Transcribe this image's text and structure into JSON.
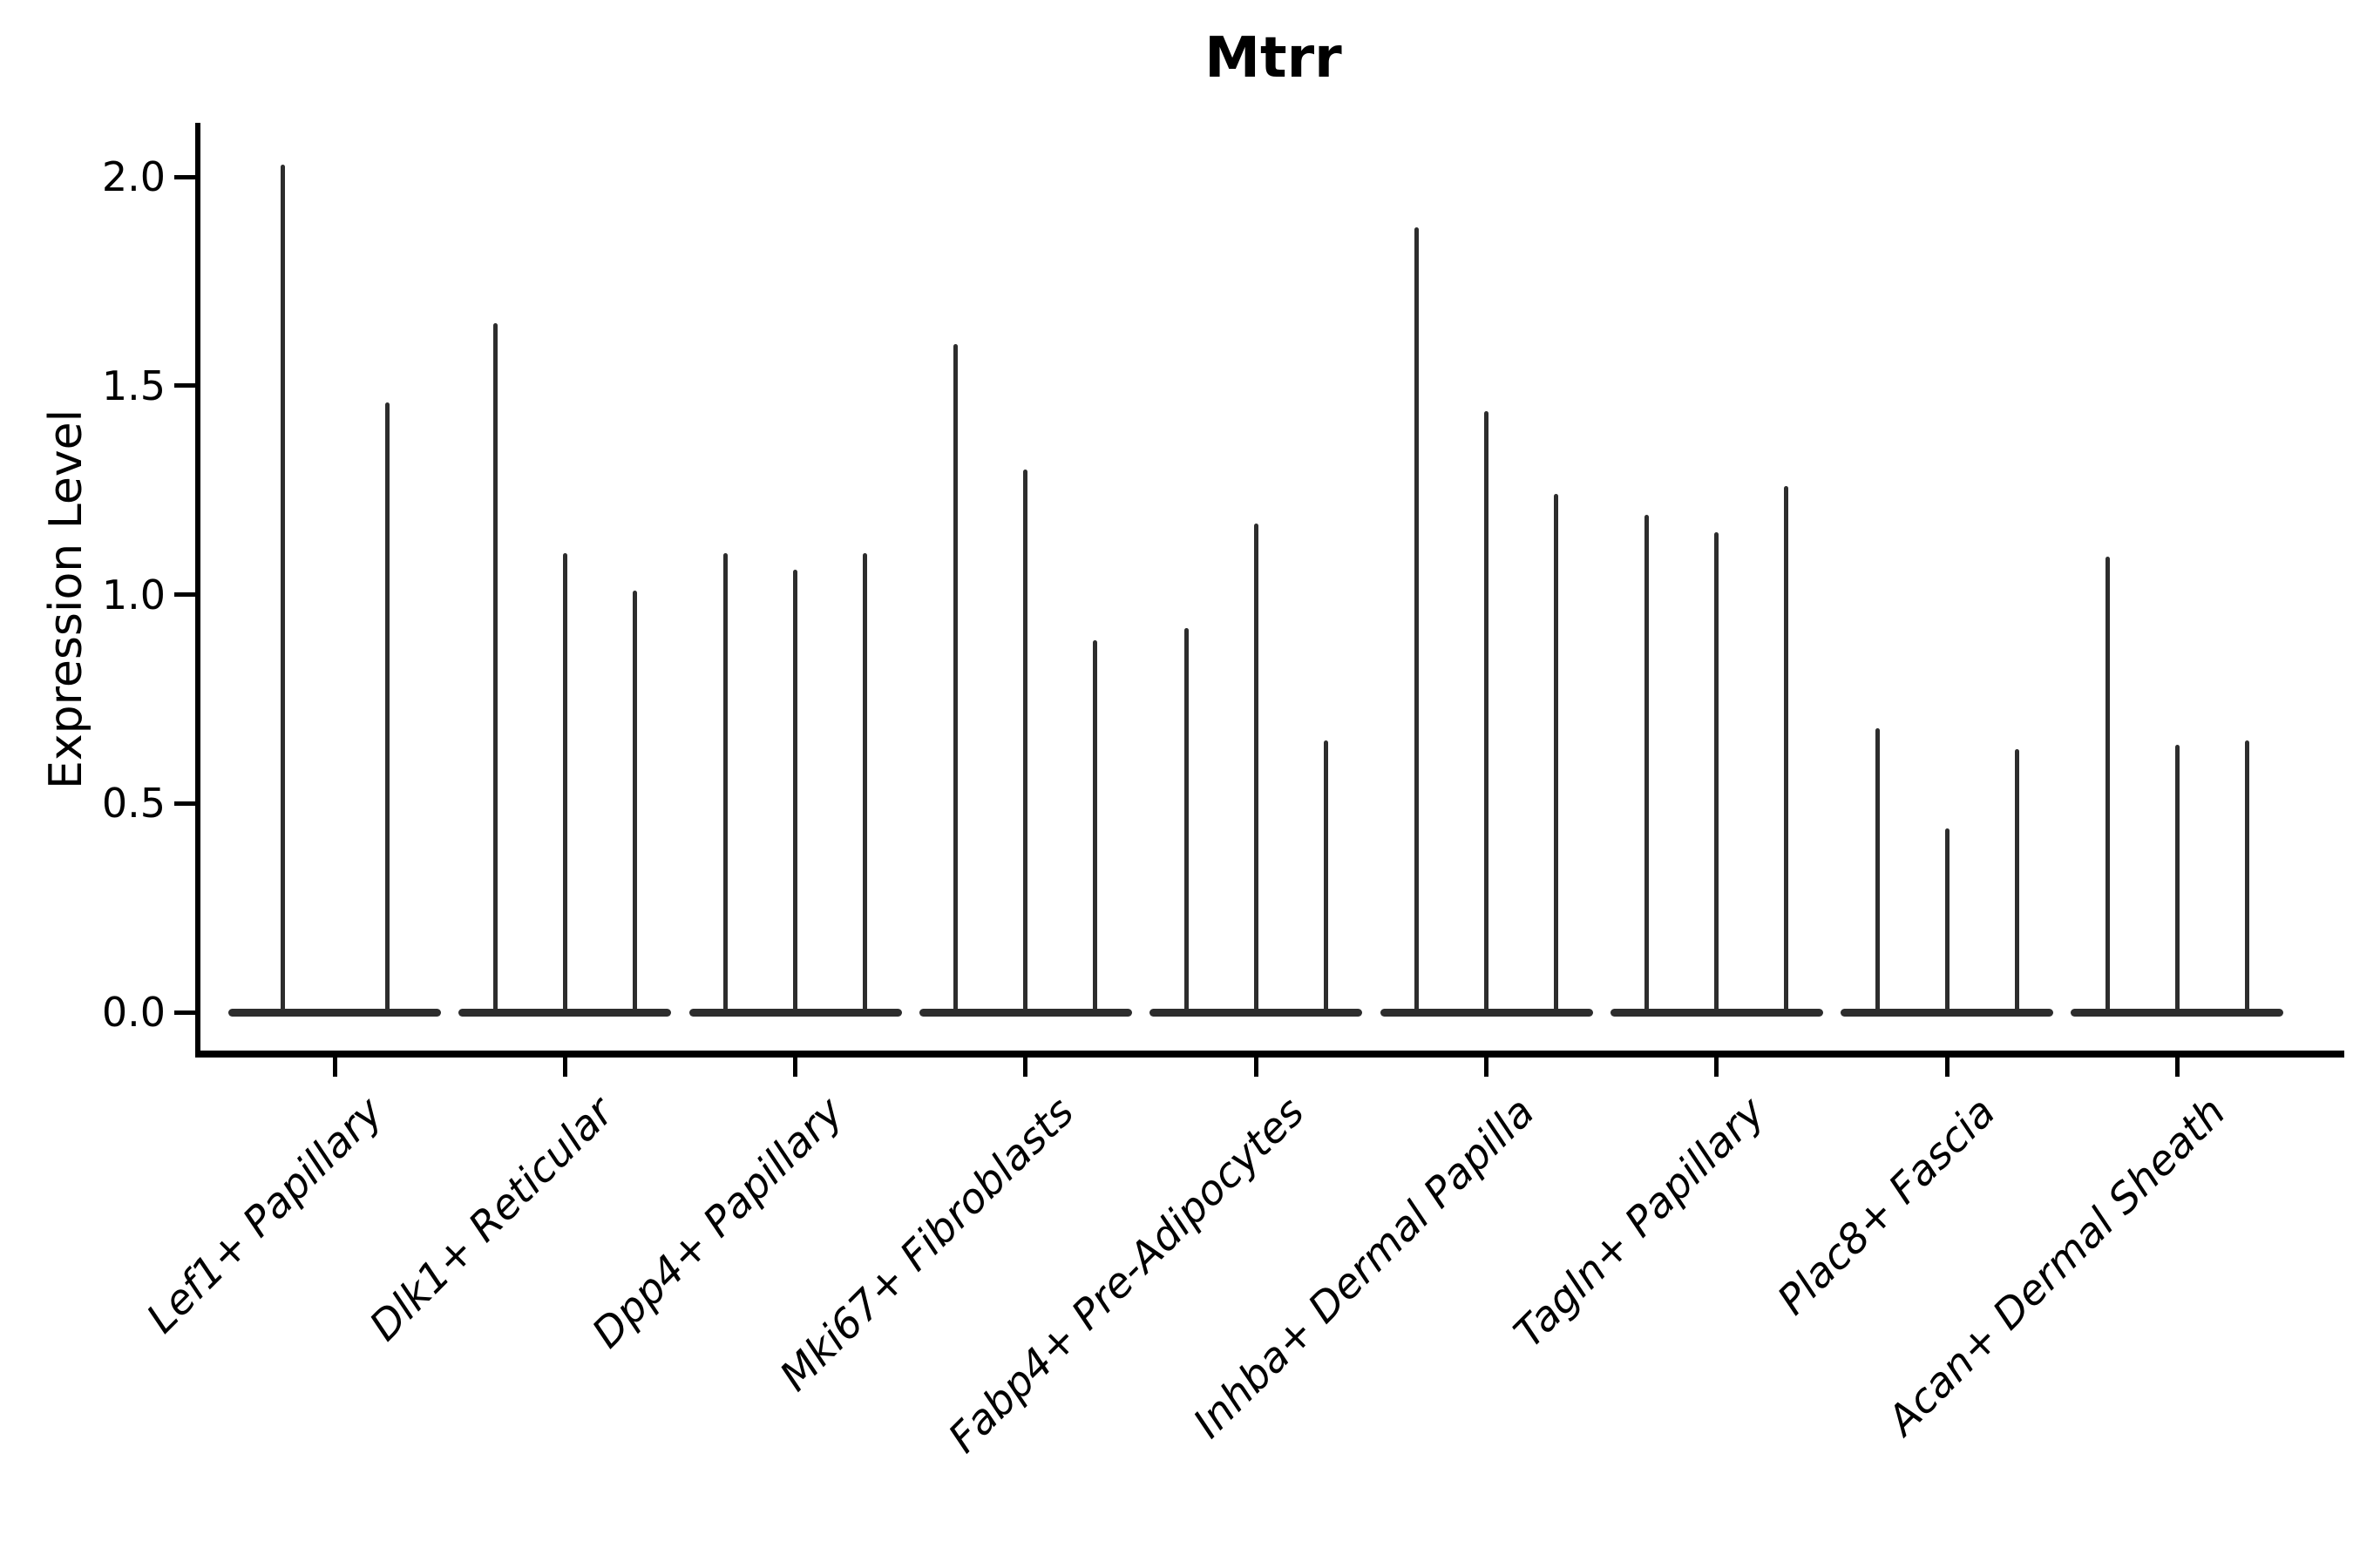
{
  "chart_data": {
    "type": "violin",
    "title": "Mtrr",
    "ylabel": "Expression Level",
    "xlabel": "",
    "grid": false,
    "legend": "none",
    "ylim": [
      0,
      2.13
    ],
    "ytick_values": [
      0.0,
      0.5,
      1.0,
      1.5,
      2.0
    ],
    "ytick_labels": [
      "0.0",
      "0.5",
      "1.0",
      "1.5",
      "2.0"
    ],
    "categories": [
      "Lef1+ Papillary",
      "Dlk1+ Reticular",
      "Dpp4+ Papillary",
      "Mki67+ Fibroblasts",
      "Fabp4+ Pre-Adipocytes",
      "Inhba+ Dermal Papilla",
      "Tagln+ Papillary",
      "Plac8+ Fascia",
      "Acan+ Dermal Sheath"
    ],
    "violins": [
      {
        "category": "Lef1+ Papillary",
        "group_maxima": [
          2.03,
          1.46
        ],
        "baseline_value": 0.0
      },
      {
        "category": "Dlk1+ Reticular",
        "group_maxima": [
          1.65,
          1.1,
          1.01
        ],
        "baseline_value": 0.0
      },
      {
        "category": "Dpp4+ Papillary",
        "group_maxima": [
          1.1,
          1.06,
          1.1
        ],
        "baseline_value": 0.0
      },
      {
        "category": "Mki67+ Fibroblasts",
        "group_maxima": [
          1.6,
          1.3,
          0.89
        ],
        "baseline_value": 0.0
      },
      {
        "category": "Fabp4+ Pre-Adipocytes",
        "group_maxima": [
          0.92,
          1.17,
          0.65
        ],
        "baseline_value": 0.0
      },
      {
        "category": "Inhba+ Dermal Papilla",
        "group_maxima": [
          1.88,
          1.44,
          1.24
        ],
        "baseline_value": 0.0
      },
      {
        "category": "Tagln+ Papillary",
        "group_maxima": [
          1.19,
          1.15,
          1.26
        ],
        "baseline_value": 0.0
      },
      {
        "category": "Plac8+ Fascia",
        "group_maxima": [
          0.68,
          0.44,
          0.63
        ],
        "baseline_value": 0.0
      },
      {
        "category": "Acan+ Dermal Sheath",
        "group_maxima": [
          1.09,
          0.64,
          0.65
        ],
        "baseline_value": 0.0
      }
    ]
  },
  "colors": {
    "background": "#ffffff",
    "axis_ink": "#000000",
    "violin_ink": "#2d2d2d"
  }
}
